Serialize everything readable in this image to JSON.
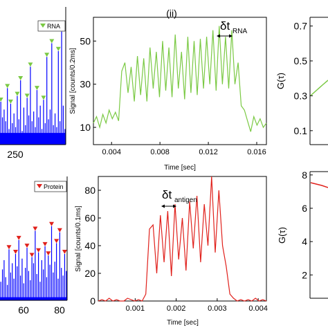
{
  "figure": {
    "panel_label": "(ii)"
  },
  "colors": {
    "rna": "#7ac943",
    "protein": "#e0201b",
    "peaks": "#0000ff",
    "axis": "#000000"
  },
  "chart_data": [
    {
      "id": "left-top",
      "type": "bar",
      "legend": "RNA",
      "legend_placement": "top-right",
      "tick_labels_x": [
        "250"
      ],
      "marker_color": "#7ac943",
      "bar_color": "#0000ff",
      "baseline": 6,
      "spikes": [
        22,
        14,
        18,
        12,
        29,
        8,
        21,
        11,
        16,
        9,
        25,
        13,
        33,
        7,
        19,
        10,
        24,
        15,
        40,
        12,
        17,
        9,
        28,
        14,
        20,
        8,
        23,
        11,
        45,
        13,
        18,
        52,
        10,
        16,
        9,
        48,
        12,
        58,
        20,
        8
      ]
    },
    {
      "id": "middle-top",
      "type": "line",
      "xlabel": "Time [sec]",
      "ylabel": "Signal [counts/0.2ms]",
      "xlim": [
        0.0025,
        0.0168
      ],
      "ylim": [
        2,
        61
      ],
      "xticks": [
        "0.004",
        "0.008",
        "0.012",
        "0.016"
      ],
      "xtick_values": [
        0.004,
        0.008,
        0.012,
        0.016
      ],
      "yticks": [
        "10",
        "30",
        "50"
      ],
      "ytick_values": [
        10,
        30,
        50
      ],
      "annotation": {
        "symbol": "δt",
        "subscript": "RNA"
      },
      "y": [
        12,
        15,
        10,
        16,
        12,
        18,
        14,
        17,
        13,
        36,
        40,
        26,
        38,
        22,
        43,
        25,
        42,
        22,
        47,
        28,
        45,
        24,
        50,
        27,
        47,
        24,
        53,
        28,
        45,
        23,
        52,
        26,
        50,
        25,
        51,
        28,
        52,
        30,
        55,
        27,
        57,
        30,
        52,
        28,
        55,
        30,
        40,
        20,
        18,
        13,
        8,
        15,
        11,
        14,
        10,
        12
      ]
    },
    {
      "id": "right-top",
      "type": "line",
      "ylabel": "G(τ)",
      "ylim": [
        0.02,
        0.75
      ],
      "yticks": [
        "0.1",
        "0.3",
        "0.5",
        "0.7"
      ],
      "ytick_values": [
        0.1,
        0.3,
        0.5,
        0.7
      ]
    },
    {
      "id": "left-bottom",
      "type": "bar",
      "legend": "Protein",
      "legend_placement": "top-right",
      "tick_labels_x": [
        "60",
        "80"
      ],
      "marker_color": "#e0201b",
      "bar_color": "#0000ff",
      "baseline": 2,
      "spikes": [
        12,
        20,
        26,
        15,
        10,
        33,
        18,
        24,
        14,
        30,
        22,
        39,
        16,
        27,
        11,
        21,
        34,
        19,
        13,
        28,
        24,
        45,
        17,
        31,
        12,
        26,
        20,
        35,
        15,
        29,
        23,
        48,
        18,
        25,
        37,
        14,
        44,
        21,
        16,
        30,
        19
      ]
    },
    {
      "id": "middle-bottom",
      "type": "line",
      "xlabel": "Time [sec]",
      "ylabel": "Signal [counts/0.1ms]",
      "xlim": [
        0.0001,
        0.0042
      ],
      "ylim": [
        0,
        90
      ],
      "xticks": [
        "0.001",
        "0.002",
        "0.003",
        "0.004"
      ],
      "xtick_values": [
        0.001,
        0.002,
        0.003,
        0.004
      ],
      "yticks": [
        "0",
        "20",
        "40",
        "60",
        "80"
      ],
      "ytick_values": [
        0,
        20,
        40,
        60,
        80
      ],
      "annotation": {
        "symbol": "δt",
        "subscript": "antigen"
      },
      "y": [
        0,
        1,
        0,
        2,
        0,
        1,
        0,
        0,
        2,
        1,
        0,
        1,
        0,
        5,
        52,
        55,
        20,
        62,
        28,
        65,
        18,
        70,
        30,
        60,
        22,
        72,
        38,
        76,
        28,
        70,
        40,
        90,
        35,
        80,
        40,
        25,
        5,
        2,
        0,
        1,
        0,
        1,
        0,
        2,
        0,
        1,
        0
      ]
    },
    {
      "id": "right-bottom",
      "type": "line",
      "ylabel": "G(τ)",
      "ylim": [
        0.6,
        8.2
      ],
      "yticks": [
        "2",
        "4",
        "6",
        "8"
      ],
      "ytick_values": [
        2,
        4,
        6,
        8
      ]
    }
  ]
}
